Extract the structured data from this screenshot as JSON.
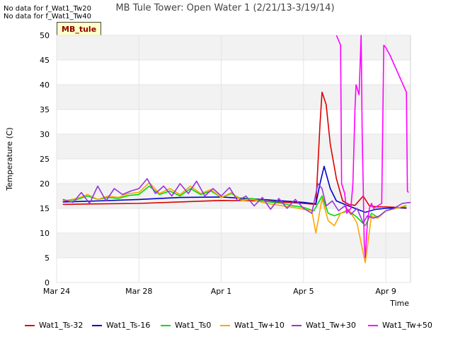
{
  "notes": [
    "No data for f_Wat1_Tw20",
    "No data for f_Wat1_Tw40"
  ],
  "badge": "MB_tule",
  "chart_data": {
    "type": "line",
    "title": "MB Tule Tower: Open Water 1 (2/21/13-3/19/14)",
    "xlabel": "Time",
    "ylabel": "Temperature (C)",
    "xlim": [
      0,
      17.2
    ],
    "ylim": [
      0,
      50
    ],
    "yticks": [
      0,
      5,
      10,
      15,
      20,
      25,
      30,
      35,
      40,
      45,
      50
    ],
    "xticks": [
      {
        "label": "Mar 24",
        "day": 0
      },
      {
        "label": "Mar 28",
        "day": 4
      },
      {
        "label": "Apr 1",
        "day": 8
      },
      {
        "label": "Apr 5",
        "day": 12
      },
      {
        "label": "Apr 9",
        "day": 16
      }
    ],
    "series": [
      {
        "name": "Wat1_Ts-32",
        "color": "#dd0000",
        "x": [
          0.3,
          2,
          4,
          6,
          8,
          10,
          12,
          12.6,
          12.8,
          12.9,
          13.1,
          13.3,
          13.6,
          13.9,
          14.2,
          14.5,
          14.9,
          15.2,
          15.6,
          16,
          16.5,
          17
        ],
        "y": [
          15.8,
          15.9,
          16.0,
          16.3,
          16.6,
          16.5,
          16.0,
          15.8,
          32,
          38.5,
          36,
          28,
          21,
          16.5,
          15.8,
          15.6,
          17.5,
          15.5,
          15.3,
          15.3,
          15.2,
          15.0
        ]
      },
      {
        "name": "Wat1_Ts-16",
        "color": "#0000cc",
        "x": [
          0.3,
          2,
          4,
          6,
          8,
          10,
          12,
          12.6,
          12.8,
          13.0,
          13.3,
          13.6,
          14.0,
          14.5,
          15.0,
          15.5,
          16,
          16.5,
          17
        ],
        "y": [
          16.3,
          16.5,
          16.8,
          17.2,
          17.3,
          16.8,
          16.2,
          15.9,
          20,
          23.5,
          19,
          16.5,
          15.8,
          15.0,
          14.2,
          14.8,
          15.0,
          15.1,
          15.1
        ]
      },
      {
        "name": "Wat1_Ts0",
        "color": "#00dd00",
        "x": [
          0.3,
          1,
          1.5,
          2,
          2.5,
          3,
          3.5,
          4,
          4.5,
          5,
          5.5,
          6,
          6.5,
          7,
          7.5,
          8,
          8.5,
          9,
          9.5,
          10,
          10.5,
          11,
          11.5,
          12,
          12.5,
          12.9,
          13.2,
          13.5,
          13.8,
          14.2,
          14.6,
          15.0,
          15.3,
          15.6,
          16,
          16.5,
          17
        ],
        "y": [
          16.5,
          16.8,
          17.5,
          16.8,
          17.2,
          17.0,
          17.6,
          17.8,
          19.5,
          17.8,
          18.5,
          17.5,
          19.0,
          17.8,
          18.5,
          17.2,
          18.0,
          16.8,
          17.0,
          16.5,
          16.2,
          16.0,
          15.5,
          15.2,
          14.5,
          17.5,
          14.0,
          13.5,
          14.0,
          14.5,
          13.2,
          11.5,
          14.0,
          13.2,
          14.5,
          15.0,
          15.5
        ]
      },
      {
        "name": "Wat1_Tw+10",
        "color": "#ffa500",
        "x": [
          0.3,
          1,
          1.5,
          2,
          2.5,
          3,
          3.5,
          4,
          4.5,
          5,
          5.5,
          6,
          6.5,
          7,
          7.5,
          8,
          8.5,
          9,
          9.5,
          10,
          10.5,
          11,
          11.5,
          12,
          12.4,
          12.6,
          12.9,
          13.2,
          13.5,
          13.8,
          14.2,
          14.6,
          15.0,
          15.3,
          15.6,
          16,
          16.5,
          17
        ],
        "y": [
          16.5,
          17.0,
          17.8,
          16.8,
          17.5,
          17.2,
          18.0,
          18.2,
          20.2,
          18.0,
          19.0,
          17.8,
          19.5,
          18.0,
          18.8,
          17.2,
          18.2,
          16.5,
          16.8,
          16.2,
          15.8,
          15.5,
          15.2,
          14.8,
          14.5,
          10.0,
          17.0,
          12.5,
          11.5,
          14.0,
          14.8,
          12.0,
          4.0,
          13.5,
          13.0,
          14.5,
          15.0,
          15.6
        ]
      },
      {
        "name": "Wat1_Tw+30",
        "color": "#9933dd",
        "x": [
          0.3,
          0.8,
          1.2,
          1.6,
          2.0,
          2.4,
          2.8,
          3.2,
          3.6,
          4.0,
          4.4,
          4.8,
          5.2,
          5.6,
          6.0,
          6.4,
          6.8,
          7.2,
          7.6,
          8.0,
          8.4,
          8.8,
          9.2,
          9.6,
          10.0,
          10.4,
          10.8,
          11.2,
          11.6,
          12.0,
          12.4,
          12.7,
          12.9,
          13.1,
          13.4,
          13.7,
          14.0,
          14.3,
          14.6,
          14.9,
          15.1,
          15.4,
          15.7,
          16.0,
          16.4,
          16.8,
          17.2
        ],
        "y": [
          16.8,
          16.2,
          18.2,
          16.0,
          19.5,
          16.5,
          19.0,
          17.8,
          18.5,
          19.0,
          21.0,
          18.0,
          19.5,
          17.5,
          20.0,
          18.0,
          20.5,
          17.5,
          19.0,
          17.5,
          19.2,
          16.5,
          17.5,
          15.5,
          17.2,
          14.8,
          17.0,
          15.0,
          16.8,
          15.0,
          14.0,
          20.0,
          19.0,
          15.5,
          16.5,
          14.5,
          15.5,
          13.8,
          15.0,
          12.0,
          13.5,
          13.0,
          13.5,
          14.5,
          15.0,
          16.0,
          16.2
        ]
      },
      {
        "name": "Wat1_Tw+50",
        "color": "#ff00ff",
        "x": [
          13.6,
          13.8,
          13.85,
          14.0,
          14.1,
          14.3,
          14.4,
          14.5,
          14.55,
          14.7,
          14.8,
          14.85,
          14.9,
          14.95,
          15.0,
          15.1,
          15.2,
          15.3,
          15.4,
          15.6,
          15.8,
          15.9,
          16.0,
          16.2,
          17.0,
          17.05,
          17.1
        ],
        "y": [
          50,
          48,
          20,
          18,
          14,
          15,
          20,
          35,
          40,
          38,
          50,
          30,
          20,
          8,
          5,
          12,
          15,
          16,
          15,
          15.5,
          16,
          48,
          47.5,
          46,
          38.5,
          18.5,
          18.2
        ]
      }
    ]
  }
}
